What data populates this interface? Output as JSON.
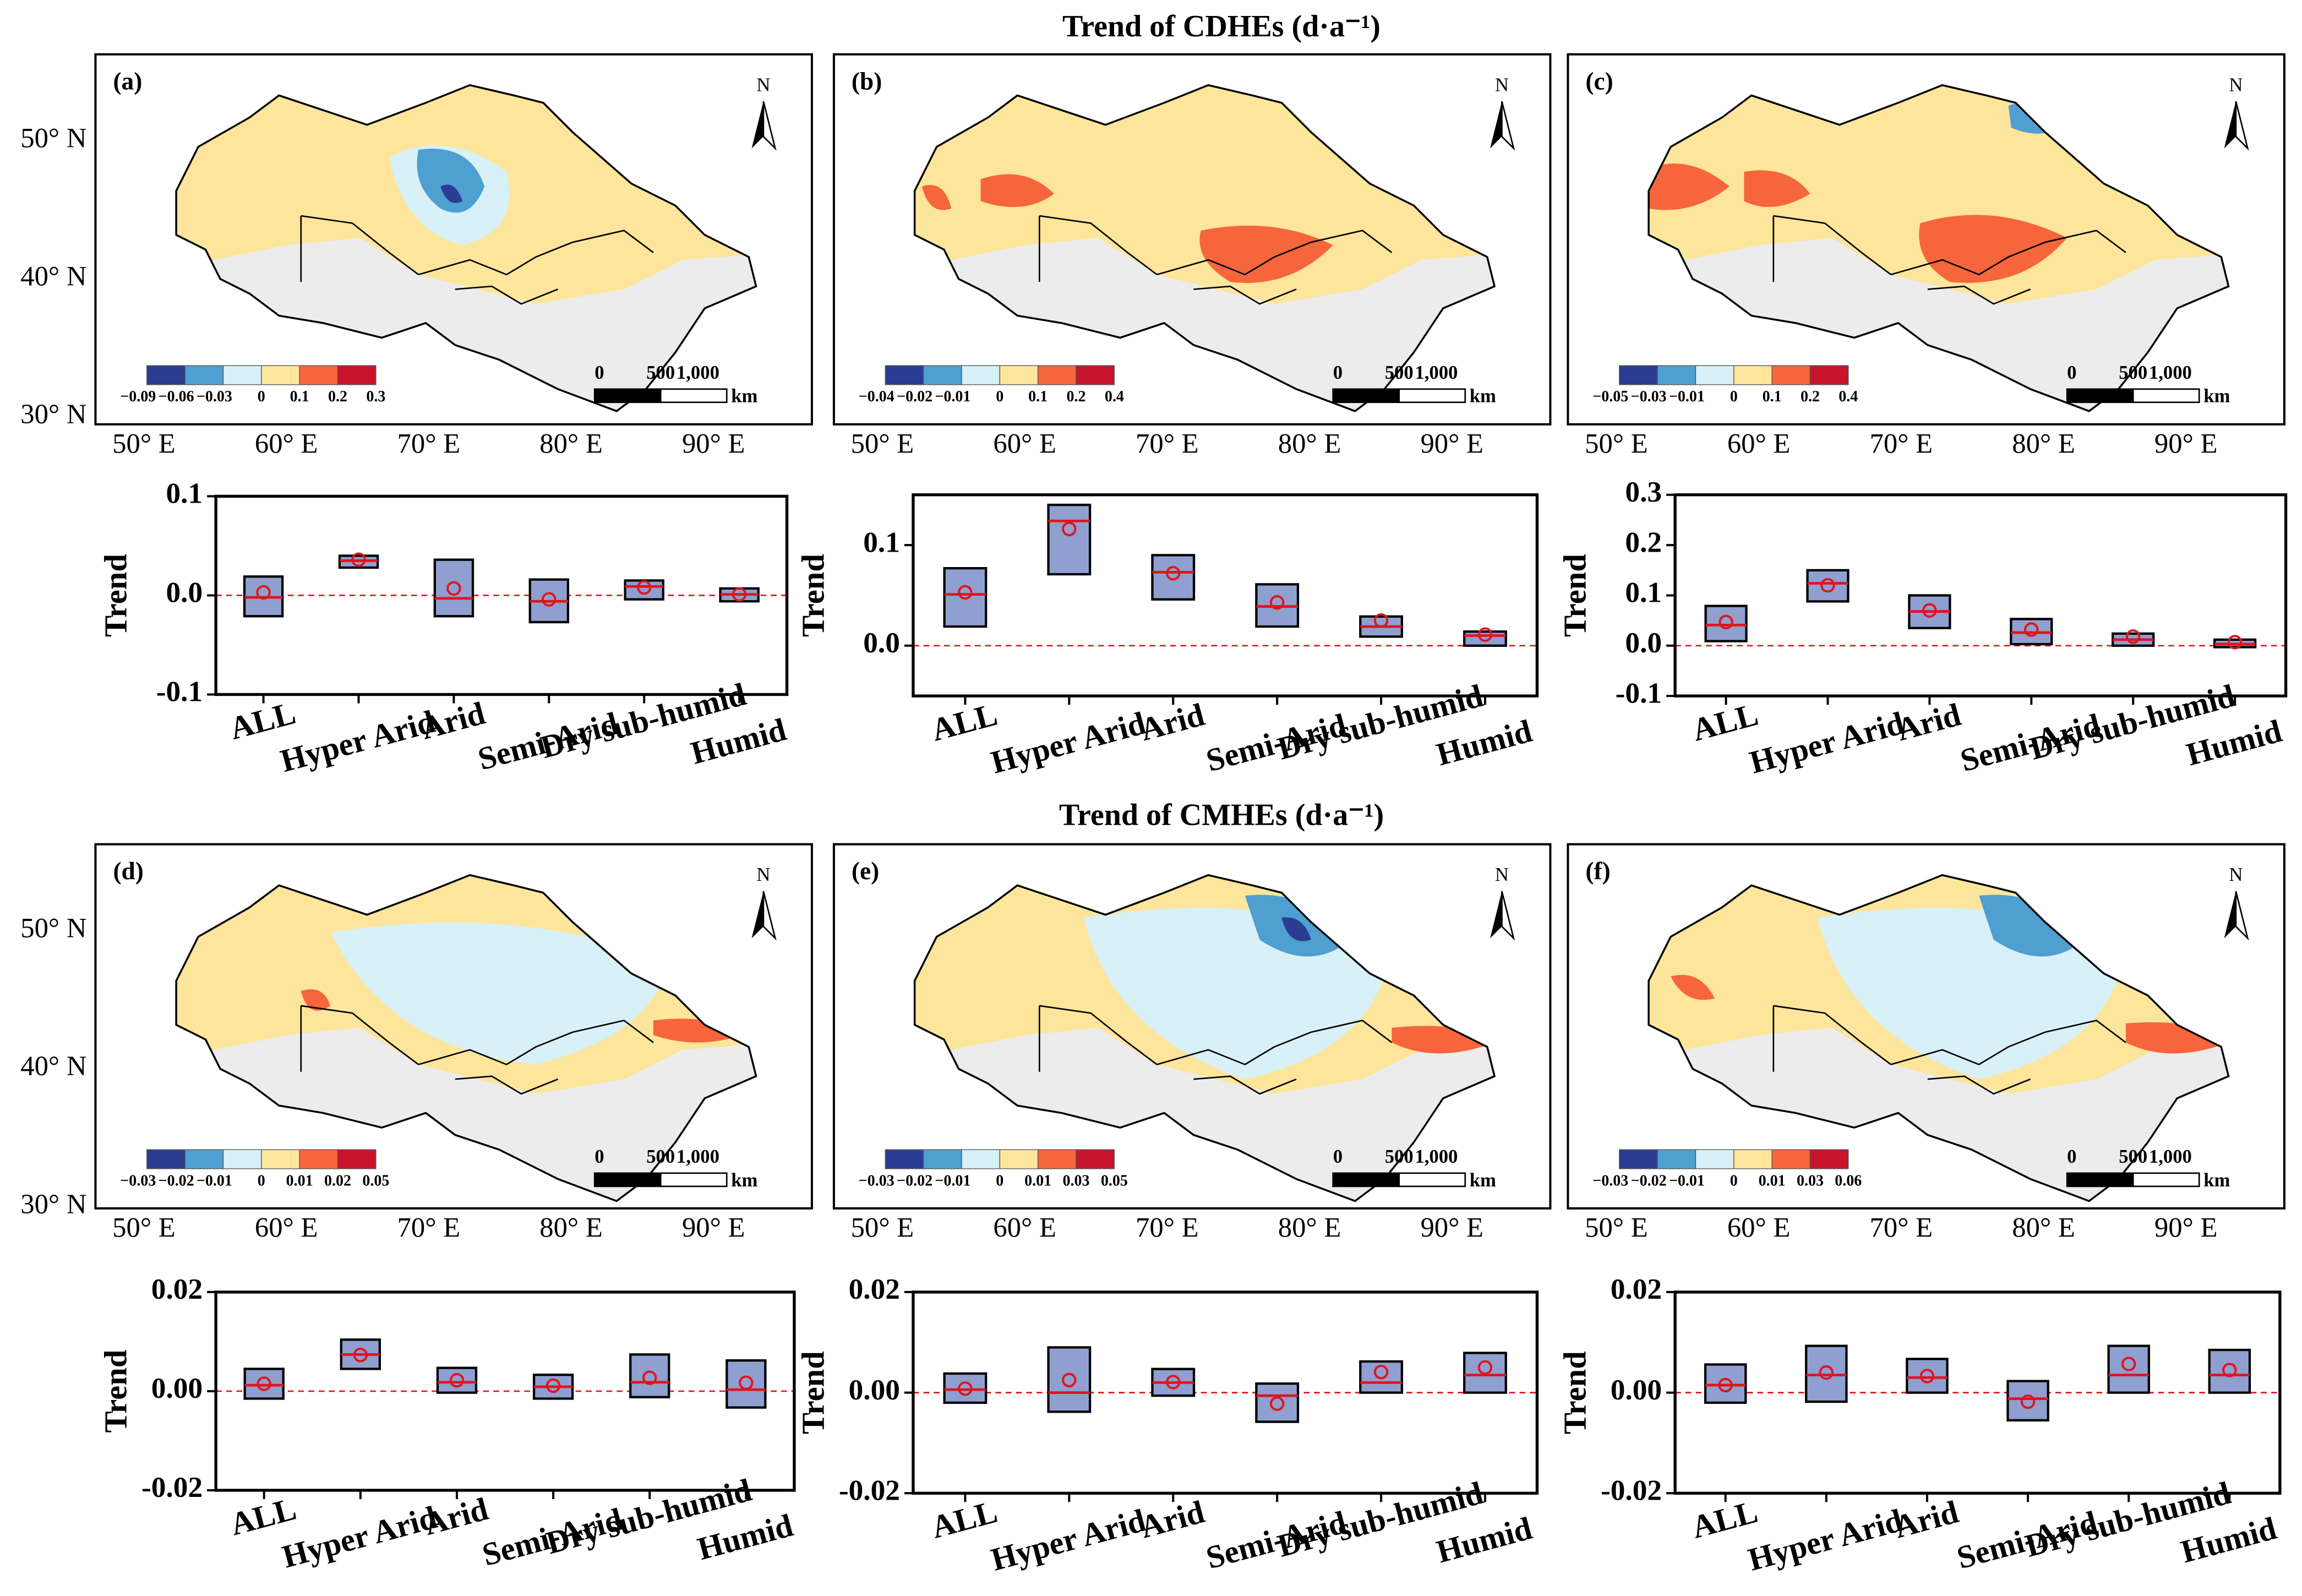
{
  "titles": [
    "Trend of CDHEs (d·a⁻¹)",
    "Trend of CMHEs (d·a⁻¹)"
  ],
  "colorbar_colors": [
    "#2b3c93",
    "#4f9fd0",
    "#d8f0f7",
    "#fde59b",
    "#f7653c",
    "#c8142d"
  ],
  "maps": [
    {
      "label": "(a)",
      "north": "N",
      "lat_labels": [
        "50° N",
        "40° N",
        "30° N"
      ],
      "lon_labels": [
        "50° E",
        "60° E",
        "70° E",
        "80° E",
        "90° E"
      ],
      "colorbar_labels": [
        "−0.09",
        "−0.06",
        "−0.03",
        "0",
        "0.1",
        "0.2",
        "0.3"
      ],
      "scale_labels": [
        "0",
        "500",
        "1,000",
        "km"
      ]
    },
    {
      "label": "(b)",
      "north": "N",
      "lon_labels": [
        "50° E",
        "60° E",
        "70° E",
        "80° E",
        "90° E"
      ],
      "colorbar_labels": [
        "−0.04",
        "−0.02",
        "−0.01",
        "0",
        "0.1",
        "0.2",
        "0.4"
      ],
      "scale_labels": [
        "0",
        "500",
        "1,000",
        "km"
      ]
    },
    {
      "label": "(c)",
      "north": "N",
      "lon_labels": [
        "50° E",
        "60° E",
        "70° E",
        "80° E",
        "90° E"
      ],
      "colorbar_labels": [
        "−0.05",
        "−0.03",
        "−0.01",
        "0",
        "0.1",
        "0.2",
        "0.4"
      ],
      "scale_labels": [
        "0",
        "500",
        "1,000",
        "km"
      ]
    },
    {
      "label": "(d)",
      "north": "N",
      "lat_labels": [
        "50° N",
        "40° N",
        "30° N"
      ],
      "lon_labels": [
        "50° E",
        "60° E",
        "70° E",
        "80° E",
        "90° E"
      ],
      "colorbar_labels": [
        "−0.03",
        "−0.02",
        "−0.01",
        "0",
        "0.01",
        "0.02",
        "0.05"
      ],
      "scale_labels": [
        "0",
        "500",
        "1,000",
        "km"
      ]
    },
    {
      "label": "(e)",
      "north": "N",
      "lon_labels": [
        "50° E",
        "60° E",
        "70° E",
        "80° E",
        "90° E"
      ],
      "colorbar_labels": [
        "−0.03",
        "−0.02",
        "−0.01",
        "0",
        "0.01",
        "0.03",
        "0.05"
      ],
      "scale_labels": [
        "0",
        "500",
        "1,000",
        "km"
      ]
    },
    {
      "label": "(f)",
      "north": "N",
      "lon_labels": [
        "50° E",
        "60° E",
        "70° E",
        "80° E",
        "90° E"
      ],
      "colorbar_labels": [
        "−0.03",
        "−0.02",
        "−0.01",
        "0",
        "0.01",
        "0.03",
        "0.06"
      ],
      "scale_labels": [
        "0",
        "500",
        "1,000",
        "km"
      ]
    }
  ],
  "chart_data": [
    {
      "type": "box",
      "ylabel": "Trend",
      "categories": [
        "ALL",
        "Hyper Arid",
        "Arid",
        "Semi-Arid",
        "Dry sub-humid",
        "Humid"
      ],
      "ylim": [
        -0.1,
        0.1
      ],
      "yticks": [
        -0.1,
        {
          "value": 0,
          "label": "0.0"
        },
        0.1
      ],
      "q1": [
        -0.021,
        0.028,
        -0.021,
        -0.027,
        -0.004,
        -0.006
      ],
      "q3": [
        0.019,
        0.04,
        0.036,
        0.016,
        0.015,
        0.007
      ],
      "median": [
        -0.002,
        0.035,
        -0.003,
        -0.006,
        0.009,
        0.001
      ],
      "mean": [
        0.003,
        0.036,
        0.007,
        -0.004,
        0.008,
        0.001
      ],
      "box_color": "#8f9fcf",
      "stat_color": "#e0141e",
      "zero_line": true
    },
    {
      "type": "box",
      "ylabel": "Trend",
      "categories": [
        "ALL",
        "Hyper Arid",
        "Arid",
        "Semi-Arid",
        "Dry sub-humid",
        "Humid"
      ],
      "ylim": [
        -0.05,
        0.15
      ],
      "yticks": [
        {
          "value": 0,
          "label": "0.0"
        },
        0.1
      ],
      "q1": [
        0.019,
        0.071,
        0.046,
        0.019,
        0.009,
        0.0
      ],
      "q3": [
        0.077,
        0.14,
        0.09,
        0.061,
        0.029,
        0.014
      ],
      "median": [
        0.051,
        0.124,
        0.073,
        0.039,
        0.019,
        0.01
      ],
      "mean": [
        0.053,
        0.116,
        0.072,
        0.043,
        0.025,
        0.011
      ],
      "box_color": "#8f9fcf",
      "stat_color": "#e0141e",
      "zero_line": true
    },
    {
      "type": "box",
      "ylabel": "Trend",
      "categories": [
        "ALL",
        "Hyper Arid",
        "Arid",
        "Semi-Arid",
        "Dry sub-humid",
        "Humid"
      ],
      "ylim": [
        -0.1,
        0.3
      ],
      "yticks": [
        -0.1,
        {
          "value": 0,
          "label": "0.0"
        },
        0.1,
        0.2,
        0.3
      ],
      "q1": [
        0.009,
        0.088,
        0.035,
        0.003,
        0.0,
        -0.003
      ],
      "q3": [
        0.079,
        0.15,
        0.1,
        0.053,
        0.024,
        0.012
      ],
      "median": [
        0.041,
        0.124,
        0.068,
        0.026,
        0.012,
        0.003
      ],
      "mean": [
        0.047,
        0.12,
        0.07,
        0.032,
        0.018,
        0.007
      ],
      "box_color": "#8f9fcf",
      "stat_color": "#e0141e",
      "zero_line": true
    },
    {
      "type": "box",
      "ylabel": "Trend",
      "categories": [
        "ALL",
        "Hyper Arid",
        "Arid",
        "Semi-Arid",
        "Dry sub-humid",
        "Humid"
      ],
      "ylim": [
        -0.02,
        0.02
      ],
      "yticks": [
        -0.02,
        {
          "value": 0,
          "label": "0.00"
        },
        0.02
      ],
      "q1": [
        -0.0015,
        0.0045,
        -0.0003,
        -0.0015,
        -0.0012,
        -0.0033
      ],
      "q3": [
        0.0045,
        0.0104,
        0.0047,
        0.0033,
        0.0074,
        0.0062
      ],
      "median": [
        0.0012,
        0.0074,
        0.0018,
        0.0009,
        0.0018,
        0.0003
      ],
      "mean": [
        0.0015,
        0.0073,
        0.0022,
        0.0011,
        0.0027,
        0.0017
      ],
      "box_color": "#8f9fcf",
      "stat_color": "#e0141e",
      "zero_line": true
    },
    {
      "type": "box",
      "ylabel": "Trend",
      "categories": [
        "ALL",
        "Hyper Arid",
        "Arid",
        "Semi-Arid",
        "Dry sub-humid",
        "Humid"
      ],
      "ylim": [
        -0.02,
        0.02
      ],
      "yticks": [
        -0.02,
        {
          "value": 0,
          "label": "0.00"
        },
        0.02
      ],
      "q1": [
        -0.002,
        -0.0038,
        -0.0006,
        -0.0058,
        0.0,
        0.0
      ],
      "q3": [
        0.0038,
        0.009,
        0.0047,
        0.0018,
        0.0062,
        0.0079
      ],
      "median": [
        0.0006,
        0.0,
        0.002,
        -0.0006,
        0.002,
        0.0035
      ],
      "mean": [
        0.0008,
        0.0025,
        0.0021,
        -0.0022,
        0.0041,
        0.005
      ],
      "box_color": "#8f9fcf",
      "stat_color": "#e0141e",
      "zero_line": true
    },
    {
      "type": "box",
      "ylabel": "Trend",
      "categories": [
        "ALL",
        "Hyper Arid",
        "Arid",
        "Semi-Arid",
        "Dry sub-humid",
        "Humid"
      ],
      "ylim": [
        -0.02,
        0.02
      ],
      "yticks": [
        -0.02,
        {
          "value": 0,
          "label": "0.00"
        },
        0.02
      ],
      "q1": [
        -0.002,
        -0.0018,
        0.0,
        -0.0055,
        0.0,
        0.0
      ],
      "q3": [
        0.0056,
        0.0093,
        0.0067,
        0.0023,
        0.0093,
        0.0085
      ],
      "median": [
        0.0015,
        0.0035,
        0.003,
        -0.0012,
        0.0035,
        0.0035
      ],
      "mean": [
        0.0015,
        0.004,
        0.0033,
        -0.0018,
        0.0057,
        0.0045
      ],
      "box_color": "#8f9fcf",
      "stat_color": "#e0141e",
      "zero_line": true
    }
  ]
}
